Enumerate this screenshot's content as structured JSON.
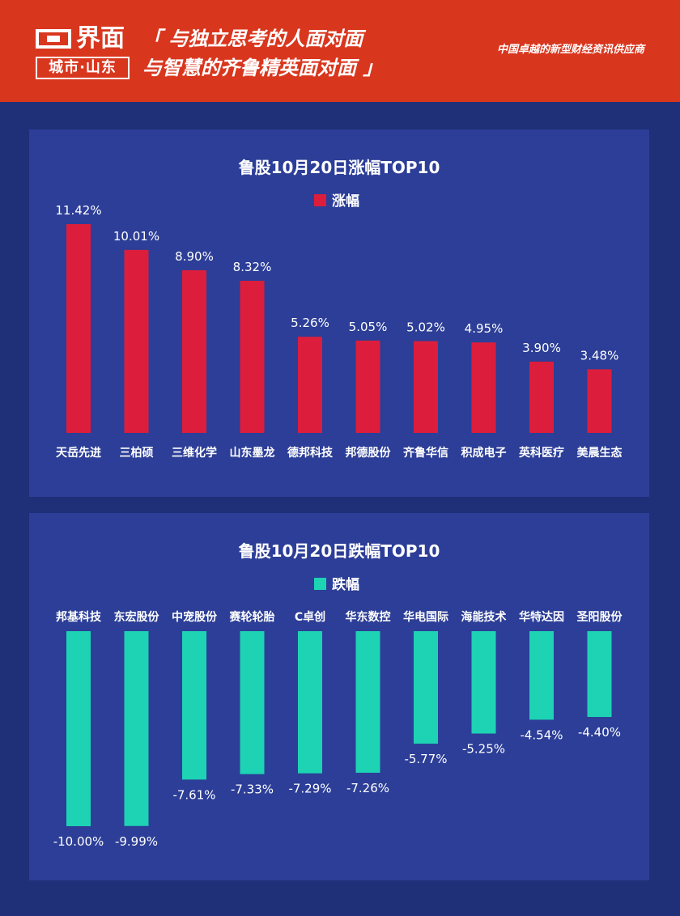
{
  "header": {
    "logo_main": "界面",
    "logo_sub": "城市·山东",
    "slogan_line1": "「 与独立思考的人面对面",
    "slogan_line2": "与智慧的齐鲁精英面对面 」",
    "tagline": "中国卓越的新型财经资讯供应商"
  },
  "colors": {
    "header_bg": "#d9361e",
    "page_bg": "#1f2f78",
    "panel_bg": "#2c3e97",
    "gain_bar": "#dc1e3c",
    "loss_bar": "#1ed2b4"
  },
  "chart_data": [
    {
      "type": "bar",
      "title": "鲁股10月20日涨幅TOP10",
      "series": [
        {
          "name": "涨幅",
          "values": [
            11.42,
            10.01,
            8.9,
            8.32,
            5.26,
            5.05,
            5.02,
            4.95,
            3.9,
            3.48
          ],
          "labels": [
            "11.42%",
            "10.01%",
            "8.90%",
            "8.32%",
            "5.26%",
            "5.05%",
            "5.02%",
            "4.95%",
            "3.90%",
            "3.48%"
          ]
        }
      ],
      "categories": [
        "天岳先进",
        "三柏硕",
        "三维化学",
        "山东墨龙",
        "德邦科技",
        "邦德股份",
        "齐鲁华信",
        "积成电子",
        "英科医疗",
        "美晨生态"
      ],
      "legend": "top-center",
      "grid": false
    },
    {
      "type": "bar",
      "title": "鲁股10月20日跌幅TOP10",
      "series": [
        {
          "name": "跌幅",
          "values": [
            -10.0,
            -9.99,
            -7.61,
            -7.33,
            -7.29,
            -7.26,
            -5.77,
            -5.25,
            -4.54,
            -4.4
          ],
          "labels": [
            "-10.00%",
            "-9.99%",
            "-7.61%",
            "-7.33%",
            "-7.29%",
            "-7.26%",
            "-5.77%",
            "-5.25%",
            "-4.54%",
            "-4.40%"
          ]
        }
      ],
      "categories": [
        "邦基科技",
        "东宏股份",
        "中宠股份",
        "赛轮轮胎",
        "C卓创",
        "华东数控",
        "华电国际",
        "海能技术",
        "华特达因",
        "圣阳股份"
      ],
      "legend": "top-center",
      "grid": false
    }
  ]
}
